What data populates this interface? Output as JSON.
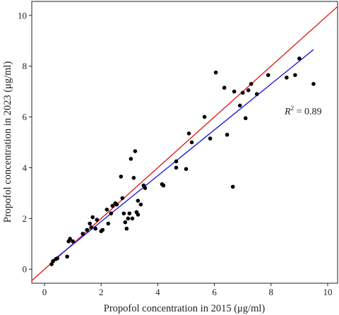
{
  "chart_data": {
    "type": "scatter",
    "xlabel": "Propofol concentration in 2015 (μg/ml)",
    "ylabel": "Propofol concentration in 2023 (μg/ml)",
    "xlim": [
      -0.45,
      10.35
    ],
    "ylim": [
      -0.55,
      10.55
    ],
    "xticks": [
      0,
      2,
      4,
      6,
      8,
      10
    ],
    "yticks": [
      0,
      2,
      4,
      6,
      8,
      10
    ],
    "annotation": {
      "label": "R",
      "superscript": "2",
      "value": " = 0.89"
    },
    "identity_line": {
      "color": "#e01010",
      "x": [
        -0.45,
        10.35
      ],
      "y": [
        -0.45,
        10.35
      ]
    },
    "fit_line": {
      "color": "#1010e0",
      "x": [
        0.25,
        9.5
      ],
      "y": [
        0.3,
        8.65
      ]
    },
    "point_color": "#000000",
    "points": [
      {
        "x": 0.25,
        "y": 0.2
      },
      {
        "x": 0.3,
        "y": 0.32
      },
      {
        "x": 0.4,
        "y": 0.4
      },
      {
        "x": 0.45,
        "y": 0.43
      },
      {
        "x": 0.8,
        "y": 0.5
      },
      {
        "x": 0.85,
        "y": 1.1
      },
      {
        "x": 0.9,
        "y": 1.2
      },
      {
        "x": 1.0,
        "y": 1.1
      },
      {
        "x": 1.35,
        "y": 1.4
      },
      {
        "x": 1.5,
        "y": 1.55
      },
      {
        "x": 1.6,
        "y": 1.8
      },
      {
        "x": 1.65,
        "y": 1.65
      },
      {
        "x": 1.7,
        "y": 2.05
      },
      {
        "x": 1.8,
        "y": 1.6
      },
      {
        "x": 1.85,
        "y": 1.95
      },
      {
        "x": 2.0,
        "y": 1.5
      },
      {
        "x": 2.05,
        "y": 1.55
      },
      {
        "x": 2.2,
        "y": 2.35
      },
      {
        "x": 2.25,
        "y": 1.8
      },
      {
        "x": 2.35,
        "y": 2.2
      },
      {
        "x": 2.4,
        "y": 2.5
      },
      {
        "x": 2.5,
        "y": 2.6
      },
      {
        "x": 2.55,
        "y": 2.55
      },
      {
        "x": 2.7,
        "y": 3.65
      },
      {
        "x": 2.75,
        "y": 2.8
      },
      {
        "x": 2.8,
        "y": 2.2
      },
      {
        "x": 2.85,
        "y": 1.85
      },
      {
        "x": 2.9,
        "y": 1.6
      },
      {
        "x": 2.95,
        "y": 2.0
      },
      {
        "x": 3.0,
        "y": 2.2
      },
      {
        "x": 3.05,
        "y": 4.35
      },
      {
        "x": 3.1,
        "y": 2.0
      },
      {
        "x": 3.15,
        "y": 3.6
      },
      {
        "x": 3.2,
        "y": 4.65
      },
      {
        "x": 3.25,
        "y": 2.25
      },
      {
        "x": 3.3,
        "y": 2.7
      },
      {
        "x": 3.3,
        "y": 2.15
      },
      {
        "x": 3.4,
        "y": 2.55
      },
      {
        "x": 3.5,
        "y": 3.3
      },
      {
        "x": 3.55,
        "y": 3.2
      },
      {
        "x": 4.15,
        "y": 3.35
      },
      {
        "x": 4.2,
        "y": 3.3
      },
      {
        "x": 4.65,
        "y": 4.25
      },
      {
        "x": 4.65,
        "y": 4.0
      },
      {
        "x": 5.0,
        "y": 3.95
      },
      {
        "x": 5.1,
        "y": 5.35
      },
      {
        "x": 5.2,
        "y": 5.0
      },
      {
        "x": 5.65,
        "y": 6.0
      },
      {
        "x": 5.85,
        "y": 5.15
      },
      {
        "x": 6.05,
        "y": 7.75
      },
      {
        "x": 6.35,
        "y": 7.15
      },
      {
        "x": 6.45,
        "y": 5.3
      },
      {
        "x": 6.65,
        "y": 3.25
      },
      {
        "x": 6.7,
        "y": 7.0
      },
      {
        "x": 6.9,
        "y": 6.45
      },
      {
        "x": 7.0,
        "y": 6.95
      },
      {
        "x": 7.1,
        "y": 5.95
      },
      {
        "x": 7.2,
        "y": 7.05
      },
      {
        "x": 7.3,
        "y": 7.3
      },
      {
        "x": 7.5,
        "y": 6.9
      },
      {
        "x": 7.9,
        "y": 7.65
      },
      {
        "x": 8.55,
        "y": 7.55
      },
      {
        "x": 8.85,
        "y": 7.65
      },
      {
        "x": 9.0,
        "y": 8.3
      },
      {
        "x": 9.5,
        "y": 7.3
      }
    ]
  }
}
